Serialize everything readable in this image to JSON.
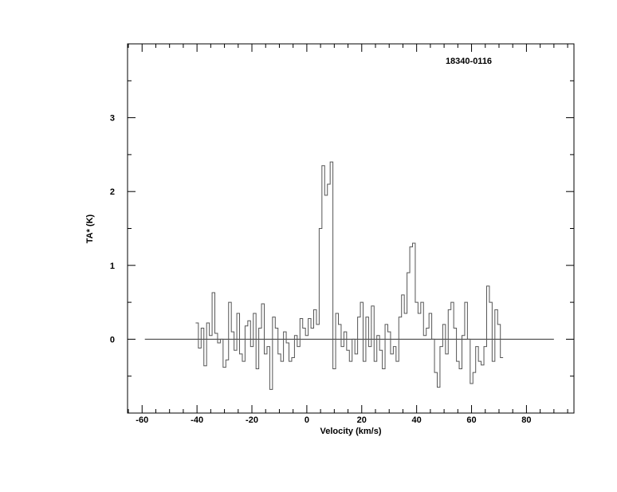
{
  "chart_data": {
    "type": "line",
    "style": "histogram-step",
    "title": "18340-0116",
    "xlabel": "Velocity (km/s)",
    "ylabel": "TA* (K)",
    "xlim": [
      -65.3,
      97.3
    ],
    "ylim": [
      -1,
      4
    ],
    "xticks": [
      -60,
      -40,
      -20,
      0,
      20,
      40,
      60,
      80
    ],
    "yticks": [
      0,
      1,
      2,
      3
    ],
    "grid": false,
    "baseline": {
      "x": [
        -59,
        90
      ],
      "y": 0
    },
    "series": [
      {
        "x_start": -40,
        "x_step": 1,
        "values": [
          0.22,
          -0.12,
          0.15,
          -0.36,
          0.22,
          0.05,
          0.63,
          0.08,
          -0.05,
          0.0,
          -0.38,
          -0.28,
          0.5,
          0.1,
          -0.15,
          0.35,
          -0.2,
          -0.3,
          0.18,
          0.25,
          -0.1,
          0.35,
          -0.4,
          0.15,
          0.48,
          -0.2,
          -0.1,
          -0.68,
          0.3,
          0.15,
          -0.2,
          -0.3,
          0.1,
          -0.05,
          -0.3,
          -0.25,
          0.05,
          -0.1,
          0.28,
          0.15,
          0.05,
          0.28,
          0.15,
          0.4,
          0.2,
          1.5,
          2.35,
          1.95,
          2.1,
          2.4,
          -0.4,
          0.35,
          0.2,
          -0.1,
          0.1,
          -0.15,
          -0.3,
          0.0,
          -0.2,
          0.3,
          0.5,
          -0.3,
          0.3,
          -0.1,
          0.45,
          -0.3,
          0.05,
          -0.15,
          -0.4,
          0.2,
          0.1,
          -0.2,
          -0.1,
          -0.3,
          0.3,
          0.6,
          0.35,
          0.9,
          1.25,
          1.3,
          0.5,
          0.35,
          0.5,
          0.05,
          0.15,
          0.35,
          0.0,
          -0.45,
          -0.65,
          -0.1,
          0.2,
          -0.2,
          0.4,
          0.5,
          0.15,
          -0.3,
          -0.4,
          0.05,
          0.5,
          0.0,
          -0.6,
          -0.45,
          -0.1,
          -0.3,
          -0.35,
          -0.1,
          0.72,
          0.5,
          -0.3,
          0.4,
          0.2,
          -0.25
        ]
      }
    ]
  }
}
